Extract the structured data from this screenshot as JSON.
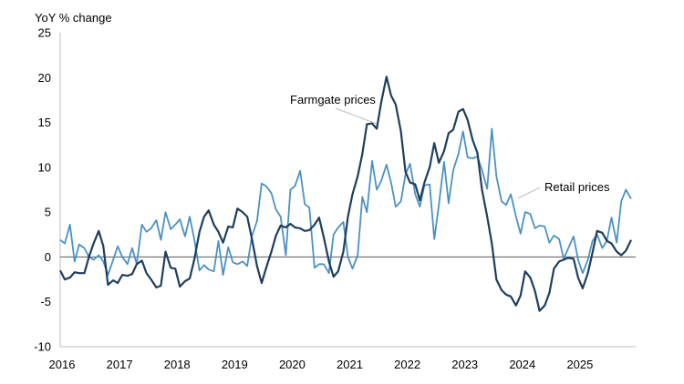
{
  "chart_data": {
    "type": "line",
    "title": "",
    "ylabel": "YoY % change",
    "xlabel": "",
    "ylim": [
      -10,
      25
    ],
    "yticks": [
      -10,
      -5,
      0,
      5,
      10,
      15,
      20,
      25
    ],
    "xlim": [
      2016,
      2026
    ],
    "xticks": [
      "2016",
      "2017",
      "2018",
      "2019",
      "2020",
      "2021",
      "2022",
      "2023",
      "2024",
      "2025"
    ],
    "grid": false,
    "legend": "none",
    "annotations": [
      {
        "text": "Farmgate prices",
        "series": "Farmgate prices"
      },
      {
        "text": "Retail prices",
        "series": "Retail prices"
      }
    ],
    "series": [
      {
        "name": "Farmgate prices",
        "color": "#1f3e5e",
        "points": [
          [
            2016.0,
            -1.5
          ],
          [
            2016.08,
            -2.5
          ],
          [
            2016.17,
            -2.3
          ],
          [
            2016.25,
            -1.7
          ],
          [
            2016.33,
            -1.8
          ],
          [
            2016.42,
            -1.8
          ],
          [
            2016.5,
            0.0
          ],
          [
            2016.58,
            1.5
          ],
          [
            2016.67,
            2.9
          ],
          [
            2016.75,
            1.2
          ],
          [
            2016.83,
            -3.1
          ],
          [
            2016.92,
            -2.6
          ],
          [
            2017.0,
            -2.9
          ],
          [
            2017.08,
            -2.0
          ],
          [
            2017.17,
            -2.1
          ],
          [
            2017.25,
            -1.9
          ],
          [
            2017.33,
            -0.8
          ],
          [
            2017.42,
            -0.4
          ],
          [
            2017.5,
            -1.8
          ],
          [
            2017.58,
            -2.5
          ],
          [
            2017.67,
            -3.4
          ],
          [
            2017.75,
            -3.2
          ],
          [
            2017.83,
            0.6
          ],
          [
            2017.92,
            -1.2
          ],
          [
            2018.0,
            -1.3
          ],
          [
            2018.08,
            -3.3
          ],
          [
            2018.17,
            -2.7
          ],
          [
            2018.25,
            -2.4
          ],
          [
            2018.33,
            -0.3
          ],
          [
            2018.42,
            2.8
          ],
          [
            2018.5,
            4.5
          ],
          [
            2018.58,
            5.2
          ],
          [
            2018.67,
            3.6
          ],
          [
            2018.75,
            2.8
          ],
          [
            2018.83,
            1.6
          ],
          [
            2018.92,
            3.4
          ],
          [
            2019.0,
            3.3
          ],
          [
            2019.08,
            5.4
          ],
          [
            2019.17,
            5.0
          ],
          [
            2019.25,
            4.5
          ],
          [
            2019.33,
            2.1
          ],
          [
            2019.42,
            -1.0
          ],
          [
            2019.5,
            -2.9
          ],
          [
            2019.58,
            -1.2
          ],
          [
            2019.67,
            0.6
          ],
          [
            2019.75,
            2.4
          ],
          [
            2019.83,
            3.5
          ],
          [
            2019.92,
            3.3
          ],
          [
            2020.0,
            3.7
          ],
          [
            2020.08,
            3.3
          ],
          [
            2020.17,
            3.2
          ],
          [
            2020.25,
            2.9
          ],
          [
            2020.33,
            3.0
          ],
          [
            2020.42,
            3.6
          ],
          [
            2020.5,
            4.4
          ],
          [
            2020.58,
            2.2
          ],
          [
            2020.67,
            -0.5
          ],
          [
            2020.75,
            -2.2
          ],
          [
            2020.83,
            -1.6
          ],
          [
            2020.92,
            0.6
          ],
          [
            2021.0,
            4.5
          ],
          [
            2021.08,
            7.0
          ],
          [
            2021.17,
            9.0
          ],
          [
            2021.25,
            11.5
          ],
          [
            2021.33,
            14.8
          ],
          [
            2021.42,
            14.9
          ],
          [
            2021.5,
            14.3
          ],
          [
            2021.58,
            17.3
          ],
          [
            2021.67,
            20.1
          ],
          [
            2021.75,
            18.0
          ],
          [
            2021.83,
            17.0
          ],
          [
            2021.92,
            14.0
          ],
          [
            2022.0,
            9.5
          ],
          [
            2022.08,
            8.3
          ],
          [
            2022.17,
            8.1
          ],
          [
            2022.25,
            6.3
          ],
          [
            2022.33,
            8.3
          ],
          [
            2022.42,
            10.0
          ],
          [
            2022.5,
            12.7
          ],
          [
            2022.58,
            10.5
          ],
          [
            2022.67,
            11.8
          ],
          [
            2022.75,
            13.8
          ],
          [
            2022.83,
            14.2
          ],
          [
            2022.92,
            16.2
          ],
          [
            2023.0,
            16.5
          ],
          [
            2023.08,
            15.3
          ],
          [
            2023.17,
            13.0
          ],
          [
            2023.25,
            11.6
          ],
          [
            2023.33,
            7.5
          ],
          [
            2023.42,
            4.5
          ],
          [
            2023.5,
            1.5
          ],
          [
            2023.58,
            -2.5
          ],
          [
            2023.67,
            -3.7
          ],
          [
            2023.75,
            -4.2
          ],
          [
            2023.83,
            -4.4
          ],
          [
            2023.92,
            -5.4
          ],
          [
            2024.0,
            -4.3
          ],
          [
            2024.08,
            -1.6
          ],
          [
            2024.17,
            -2.3
          ],
          [
            2024.25,
            -3.8
          ],
          [
            2024.33,
            -6.0
          ],
          [
            2024.42,
            -5.4
          ],
          [
            2024.5,
            -4.0
          ],
          [
            2024.58,
            -1.3
          ],
          [
            2024.67,
            -0.5
          ],
          [
            2024.75,
            -0.3
          ],
          [
            2024.83,
            -0.1
          ],
          [
            2024.92,
            -0.2
          ],
          [
            2025.0,
            -2.3
          ],
          [
            2025.08,
            -3.5
          ],
          [
            2025.17,
            -1.8
          ],
          [
            2025.25,
            0.5
          ],
          [
            2025.33,
            2.9
          ],
          [
            2025.42,
            2.7
          ],
          [
            2025.5,
            1.8
          ],
          [
            2025.58,
            1.5
          ],
          [
            2025.67,
            0.6
          ],
          [
            2025.75,
            0.2
          ],
          [
            2025.83,
            0.7
          ],
          [
            2025.92,
            1.9
          ]
        ]
      },
      {
        "name": "Retail prices",
        "color": "#4b92c3",
        "points": [
          [
            2016.0,
            1.9
          ],
          [
            2016.08,
            1.5
          ],
          [
            2016.17,
            3.6
          ],
          [
            2016.25,
            -0.5
          ],
          [
            2016.33,
            1.4
          ],
          [
            2016.42,
            1.0
          ],
          [
            2016.5,
            0.0
          ],
          [
            2016.58,
            -0.3
          ],
          [
            2016.67,
            0.2
          ],
          [
            2016.75,
            -0.5
          ],
          [
            2016.83,
            -2.0
          ],
          [
            2016.92,
            -0.3
          ],
          [
            2017.0,
            1.2
          ],
          [
            2017.08,
            0.0
          ],
          [
            2017.17,
            -0.8
          ],
          [
            2017.25,
            1.0
          ],
          [
            2017.33,
            -0.8
          ],
          [
            2017.42,
            3.6
          ],
          [
            2017.5,
            2.8
          ],
          [
            2017.58,
            3.2
          ],
          [
            2017.67,
            4.1
          ],
          [
            2017.75,
            1.9
          ],
          [
            2017.83,
            5.0
          ],
          [
            2017.92,
            3.1
          ],
          [
            2018.0,
            3.6
          ],
          [
            2018.08,
            4.2
          ],
          [
            2018.17,
            2.3
          ],
          [
            2018.25,
            4.5
          ],
          [
            2018.33,
            2.0
          ],
          [
            2018.42,
            -1.5
          ],
          [
            2018.5,
            -0.9
          ],
          [
            2018.58,
            -1.4
          ],
          [
            2018.67,
            -1.6
          ],
          [
            2018.75,
            1.8
          ],
          [
            2018.83,
            -2.0
          ],
          [
            2018.92,
            1.1
          ],
          [
            2019.0,
            -0.6
          ],
          [
            2019.08,
            -0.8
          ],
          [
            2019.17,
            -0.5
          ],
          [
            2019.25,
            -1.0
          ],
          [
            2019.33,
            2.3
          ],
          [
            2019.42,
            4.0
          ],
          [
            2019.5,
            8.2
          ],
          [
            2019.58,
            7.9
          ],
          [
            2019.67,
            7.1
          ],
          [
            2019.75,
            5.3
          ],
          [
            2019.83,
            4.5
          ],
          [
            2019.92,
            0.2
          ],
          [
            2020.0,
            7.5
          ],
          [
            2020.08,
            7.9
          ],
          [
            2020.17,
            9.6
          ],
          [
            2020.25,
            5.9
          ],
          [
            2020.33,
            5.5
          ],
          [
            2020.42,
            -1.2
          ],
          [
            2020.5,
            -0.8
          ],
          [
            2020.58,
            -0.8
          ],
          [
            2020.67,
            -1.8
          ],
          [
            2020.75,
            2.5
          ],
          [
            2020.83,
            3.3
          ],
          [
            2020.92,
            3.9
          ],
          [
            2021.0,
            0.0
          ],
          [
            2021.08,
            -1.3
          ],
          [
            2021.17,
            0.2
          ],
          [
            2021.25,
            6.7
          ],
          [
            2021.33,
            5.0
          ],
          [
            2021.42,
            10.7
          ],
          [
            2021.5,
            7.5
          ],
          [
            2021.58,
            8.5
          ],
          [
            2021.67,
            10.3
          ],
          [
            2021.75,
            8.3
          ],
          [
            2021.83,
            5.6
          ],
          [
            2021.92,
            6.2
          ],
          [
            2022.0,
            9.2
          ],
          [
            2022.08,
            10.4
          ],
          [
            2022.17,
            7.0
          ],
          [
            2022.25,
            5.6
          ],
          [
            2022.33,
            8.0
          ],
          [
            2022.42,
            8.1
          ],
          [
            2022.5,
            2.0
          ],
          [
            2022.58,
            5.8
          ],
          [
            2022.67,
            10.6
          ],
          [
            2022.75,
            6.0
          ],
          [
            2022.83,
            9.7
          ],
          [
            2022.92,
            11.5
          ],
          [
            2023.0,
            14.0
          ],
          [
            2023.08,
            11.1
          ],
          [
            2023.17,
            11.0
          ],
          [
            2023.25,
            11.2
          ],
          [
            2023.33,
            9.7
          ],
          [
            2023.42,
            7.6
          ],
          [
            2023.5,
            14.3
          ],
          [
            2023.58,
            9.0
          ],
          [
            2023.67,
            6.2
          ],
          [
            2023.75,
            5.8
          ],
          [
            2023.83,
            7.0
          ],
          [
            2023.92,
            4.5
          ],
          [
            2024.0,
            2.6
          ],
          [
            2024.08,
            5.0
          ],
          [
            2024.17,
            4.8
          ],
          [
            2024.25,
            3.2
          ],
          [
            2024.33,
            3.5
          ],
          [
            2024.42,
            3.4
          ],
          [
            2024.5,
            1.6
          ],
          [
            2024.58,
            2.4
          ],
          [
            2024.67,
            2.0
          ],
          [
            2024.75,
            -0.2
          ],
          [
            2024.83,
            1.0
          ],
          [
            2024.92,
            2.3
          ],
          [
            2025.0,
            -0.3
          ],
          [
            2025.08,
            -1.8
          ],
          [
            2025.17,
            -0.3
          ],
          [
            2025.25,
            1.8
          ],
          [
            2025.33,
            2.5
          ],
          [
            2025.42,
            1.0
          ],
          [
            2025.5,
            1.8
          ],
          [
            2025.58,
            4.4
          ],
          [
            2025.67,
            1.6
          ],
          [
            2025.75,
            6.2
          ],
          [
            2025.83,
            7.5
          ],
          [
            2025.92,
            6.5
          ]
        ]
      }
    ]
  }
}
